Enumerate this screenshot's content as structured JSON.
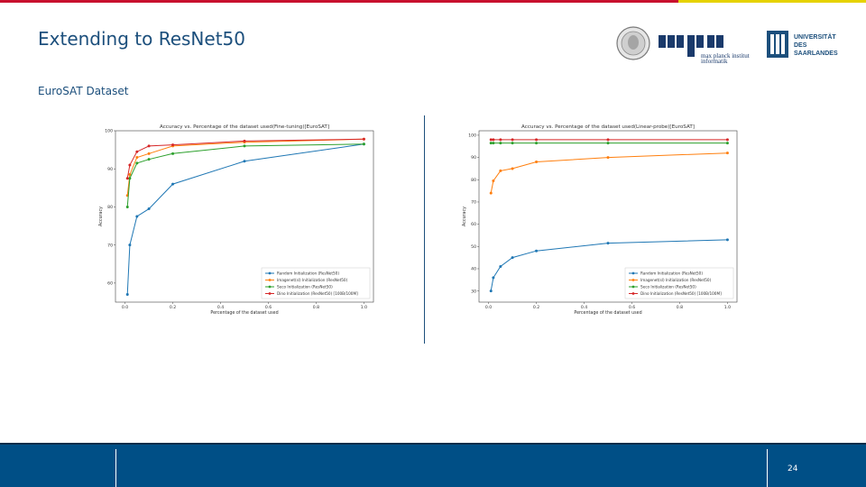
{
  "slide": {
    "title": "Extending to ResNet50",
    "subtitle": "EuroSAT Dataset",
    "page_number": "24"
  },
  "logos": {
    "mpi_text": "mpi",
    "mpi_sub1": "max planck institut",
    "mpi_sub2": "informatik",
    "uds_line1": "UNIVERSITÄT",
    "uds_line2": "DES",
    "uds_line3": "SAARLANDES"
  },
  "colors": {
    "title": "#1c4f7c",
    "series": [
      "#1f77b4",
      "#ff7f0e",
      "#2ca02c",
      "#d62728"
    ]
  },
  "chart_data": [
    {
      "type": "line",
      "title": "Accuracy vs. Percentage of the dataset used(Fine-tuning)[EuroSAT]",
      "xlabel": "Percentage of the dataset used",
      "ylabel": "Accuracy",
      "xlim": [
        -0.04,
        1.04
      ],
      "ylim": [
        55,
        100
      ],
      "xticks": [
        "0.0",
        "0.2",
        "0.4",
        "0.6",
        "0.8",
        "1.0"
      ],
      "xtick_values": [
        0,
        0.2,
        0.4,
        0.6,
        0.8,
        1.0
      ],
      "yticks": [
        "60",
        "70",
        "80",
        "90",
        "100"
      ],
      "ytick_values": [
        60,
        70,
        80,
        90,
        100
      ],
      "legend_position": "lower-right",
      "x": [
        0.01,
        0.02,
        0.05,
        0.1,
        0.2,
        0.5,
        1.0
      ],
      "series": [
        {
          "name": "Random Initialization (ResNet50)",
          "values": [
            57,
            70,
            77.5,
            79.5,
            86,
            92,
            96.5
          ]
        },
        {
          "name": "Imagenet(sl) Initialization (ResNet50)",
          "values": [
            83,
            88.5,
            93,
            94,
            96,
            97,
            97.8
          ]
        },
        {
          "name": "Seco Initialization (ResNet50)",
          "values": [
            80,
            87.5,
            91.5,
            92.5,
            94,
            96,
            96.5
          ]
        },
        {
          "name": "Dino Initialization (ResNet50) [100B/100M]",
          "values": [
            87.5,
            91,
            94.5,
            96,
            96.3,
            97.3,
            97.8
          ]
        }
      ]
    },
    {
      "type": "line",
      "title": "Accuracy vs. Percentage of the dataset used(Linear-probe)[EuroSAT]",
      "xlabel": "Percentage of the dataset used",
      "ylabel": "Accuracy",
      "xlim": [
        -0.04,
        1.04
      ],
      "ylim": [
        25,
        102
      ],
      "xticks": [
        "0.0",
        "0.2",
        "0.4",
        "0.6",
        "0.8",
        "1.0"
      ],
      "xtick_values": [
        0,
        0.2,
        0.4,
        0.6,
        0.8,
        1.0
      ],
      "yticks": [
        "30",
        "40",
        "50",
        "60",
        "70",
        "80",
        "90",
        "100"
      ],
      "ytick_values": [
        30,
        40,
        50,
        60,
        70,
        80,
        90,
        100
      ],
      "legend_position": "lower-right",
      "x": [
        0.01,
        0.02,
        0.05,
        0.1,
        0.2,
        0.5,
        1.0
      ],
      "series": [
        {
          "name": "Random Initialization (ResNet50)",
          "values": [
            30,
            36,
            41,
            45,
            48,
            51.5,
            53
          ]
        },
        {
          "name": "Imagenet(sl) Initialization (ResNet50)",
          "values": [
            74,
            79.5,
            84,
            85,
            88,
            90,
            92
          ]
        },
        {
          "name": "Seco Initialization (ResNet50)",
          "values": [
            96.5,
            96.5,
            96.5,
            96.5,
            96.5,
            96.5,
            96.5
          ]
        },
        {
          "name": "Dino Initialization (ResNet50) [100B/100M]",
          "values": [
            98,
            98,
            98,
            98,
            98,
            98,
            98
          ]
        }
      ]
    }
  ]
}
